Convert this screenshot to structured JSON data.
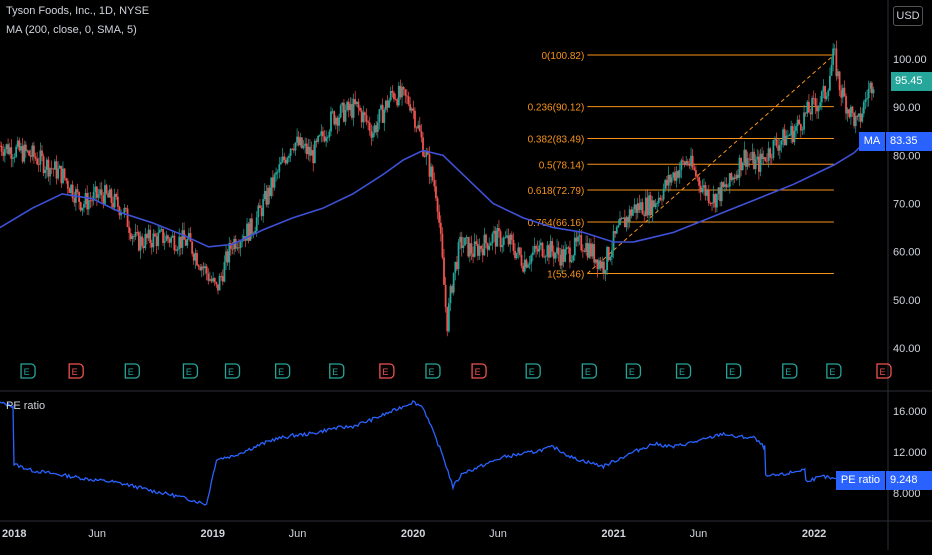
{
  "header": {
    "symbol_line": "Tyson Foods, Inc., 1D, NYSE",
    "ma_legend": "MA (200, close, 0, SMA, 5)",
    "currency": "USD"
  },
  "lower_pane": {
    "legend": "PE ratio"
  },
  "badges": {
    "price": {
      "label": "",
      "value": "95.45",
      "color": "#26a69a"
    },
    "ma": {
      "label": "MA",
      "value": "83.35",
      "color": "#2962ff"
    },
    "pe": {
      "label": "PE ratio",
      "value": "9.248",
      "color": "#2962ff"
    }
  },
  "colors": {
    "up": "#26a69a",
    "down": "#ef5350",
    "ma_line": "#3f51d8",
    "pe_line": "#2962ff",
    "fib": "#f7931a",
    "earnings_green": "#26a69a",
    "earnings_red": "#ef5350"
  },
  "chart_data": [
    {
      "type": "candlestick",
      "title": "Tyson Foods, Inc., 1D, NYSE",
      "ylim": [
        35,
        110
      ],
      "y_ticks": [
        "100.00",
        "90.00",
        "80.00",
        "70.00",
        "60.00",
        "50.00",
        "40.00"
      ],
      "y_tick_values": [
        100,
        90,
        80,
        70,
        60,
        50,
        40
      ],
      "price_anchors": {
        "x": [
          2017.94,
          2018.1,
          2018.25,
          2018.35,
          2018.45,
          2018.55,
          2018.62,
          2018.75,
          2018.88,
          2018.98,
          2019.02,
          2019.1,
          2019.2,
          2019.3,
          2019.4,
          2019.5,
          2019.6,
          2019.72,
          2019.8,
          2019.9,
          2019.99,
          2020.05,
          2020.12,
          2020.17,
          2020.2,
          2020.24,
          2020.3,
          2020.4,
          2020.48,
          2020.55,
          2020.65,
          2020.75,
          2020.85,
          2020.95,
          2021.02,
          2021.1,
          2021.2,
          2021.3,
          2021.37,
          2021.45,
          2021.5,
          2021.58,
          2021.65,
          2021.72,
          2021.8,
          2021.9,
          2021.97,
          2022.02,
          2022.06,
          2022.1,
          2022.13,
          2022.17,
          2022.22,
          2022.26,
          2022.3
        ],
        "y": [
          82,
          80,
          76,
          70,
          72,
          69,
          62,
          63,
          62,
          55,
          52,
          62,
          65,
          74,
          83,
          80,
          88,
          90,
          85,
          93,
          91,
          82,
          72,
          45,
          55,
          62,
          60,
          63,
          62,
          58,
          61,
          59,
          62,
          57,
          64,
          69,
          70,
          76,
          79,
          73,
          71,
          74,
          80,
          78,
          82,
          85,
          89,
          91,
          93,
          101,
          94,
          90,
          86,
          92,
          96
        ]
      },
      "fib_levels": [
        {
          "ratio": "0",
          "price": 100.82,
          "label": "0(100.82)"
        },
        {
          "ratio": "0.236",
          "price": 90.12,
          "label": "0.236(90.12)"
        },
        {
          "ratio": "0.382",
          "price": 83.49,
          "label": "0.382(83.49)"
        },
        {
          "ratio": "0.5",
          "price": 78.14,
          "label": "0.5(78.14)"
        },
        {
          "ratio": "0.618",
          "price": 72.79,
          "label": "0.618(72.79)"
        },
        {
          "ratio": "0.764",
          "price": 66.16,
          "label": "0.764(66.16)"
        },
        {
          "ratio": "1",
          "price": 55.46,
          "label": "1(55.46)"
        }
      ],
      "fib_range_x": [
        2020.87,
        2022.1
      ],
      "series": [
        {
          "name": "MA (200, close, 0, SMA, 5)",
          "x": [
            2017.94,
            2018.1,
            2018.25,
            2018.4,
            2018.55,
            2018.7,
            2018.85,
            2018.98,
            2019.1,
            2019.25,
            2019.4,
            2019.55,
            2019.7,
            2019.85,
            2019.95,
            2020.05,
            2020.15,
            2020.25,
            2020.4,
            2020.55,
            2020.7,
            2020.85,
            2021.0,
            2021.1,
            2021.2,
            2021.3,
            2021.45,
            2021.6,
            2021.75,
            2021.9,
            2022.0,
            2022.1,
            2022.2,
            2022.27
          ],
          "values": [
            65,
            69,
            72,
            71,
            68,
            66,
            63.5,
            61,
            61.5,
            64.5,
            67,
            69,
            72,
            76,
            79,
            81,
            80,
            76,
            70,
            67,
            65,
            64,
            62,
            62,
            63,
            64,
            66.5,
            69,
            71.5,
            74,
            76,
            78,
            80.5,
            83.35
          ]
        }
      ],
      "earnings": [
        {
          "x": 2018.08,
          "color": "green",
          "label": "E"
        },
        {
          "x": 2018.32,
          "color": "red",
          "label": "E"
        },
        {
          "x": 2018.6,
          "color": "green",
          "label": "E"
        },
        {
          "x": 2018.89,
          "color": "green",
          "label": "E"
        },
        {
          "x": 2019.1,
          "color": "green",
          "label": "E"
        },
        {
          "x": 2019.35,
          "color": "green",
          "label": "E"
        },
        {
          "x": 2019.62,
          "color": "green",
          "label": "E"
        },
        {
          "x": 2019.87,
          "color": "red",
          "label": "E"
        },
        {
          "x": 2020.1,
          "color": "green",
          "label": "E"
        },
        {
          "x": 2020.33,
          "color": "red",
          "label": "E"
        },
        {
          "x": 2020.6,
          "color": "green",
          "label": "E"
        },
        {
          "x": 2020.88,
          "color": "green",
          "label": "E"
        },
        {
          "x": 2021.1,
          "color": "green",
          "label": "E"
        },
        {
          "x": 2021.35,
          "color": "green",
          "label": "E"
        },
        {
          "x": 2021.6,
          "color": "green",
          "label": "E"
        },
        {
          "x": 2021.88,
          "color": "green",
          "label": "E"
        },
        {
          "x": 2022.1,
          "color": "green",
          "label": "E"
        },
        {
          "x": 2022.35,
          "color": "red",
          "label": "E"
        }
      ]
    },
    {
      "type": "line",
      "title": "PE ratio",
      "ylim": [
        6,
        17.5
      ],
      "y_ticks": [
        "16.000",
        "12.000",
        "8.000"
      ],
      "y_tick_values": [
        16,
        12,
        8
      ],
      "series": [
        {
          "name": "PE ratio",
          "x": [
            2017.94,
            2018.0,
            2018.01,
            2018.1,
            2018.2,
            2018.3,
            2018.4,
            2018.5,
            2018.6,
            2018.7,
            2018.8,
            2018.9,
            2018.97,
            2019.02,
            2019.1,
            2019.2,
            2019.3,
            2019.4,
            2019.5,
            2019.6,
            2019.7,
            2019.8,
            2019.9,
            2020.0,
            2020.05,
            2020.1,
            2020.15,
            2020.2,
            2020.25,
            2020.3,
            2020.45,
            2020.6,
            2020.7,
            2020.8,
            2020.95,
            2021.1,
            2021.2,
            2021.3,
            2021.45,
            2021.55,
            2021.6,
            2021.7,
            2021.75,
            2021.76,
            2021.85,
            2021.95,
            2021.96,
            2022.05,
            2022.15,
            2022.28
          ],
          "values": [
            16.8,
            16.5,
            10.8,
            10.2,
            9.9,
            9.6,
            9.3,
            9.1,
            8.7,
            8.2,
            7.8,
            7.3,
            6.9,
            11.3,
            11.6,
            12.4,
            13.2,
            13.6,
            13.8,
            14.3,
            14.5,
            15.2,
            16.0,
            16.9,
            16.4,
            14.0,
            11.6,
            8.6,
            10.0,
            10.3,
            11.5,
            12.0,
            12.5,
            11.4,
            10.6,
            12.0,
            12.8,
            12.5,
            13.2,
            13.8,
            13.5,
            13.4,
            12.5,
            9.6,
            9.8,
            10.3,
            9.2,
            9.6,
            9.1,
            9.25
          ]
        }
      ]
    }
  ],
  "time_axis": {
    "labels": [
      "2018",
      "Jun",
      "2019",
      "Jun",
      "2020",
      "Jun",
      "2021",
      "Jun",
      "2022"
    ],
    "label_x": [
      2018.0,
      2018.42,
      2019.0,
      2019.42,
      2020.0,
      2020.42,
      2021.0,
      2021.42,
      2022.0
    ],
    "bold": [
      true,
      false,
      true,
      false,
      true,
      false,
      true,
      false,
      true
    ]
  }
}
